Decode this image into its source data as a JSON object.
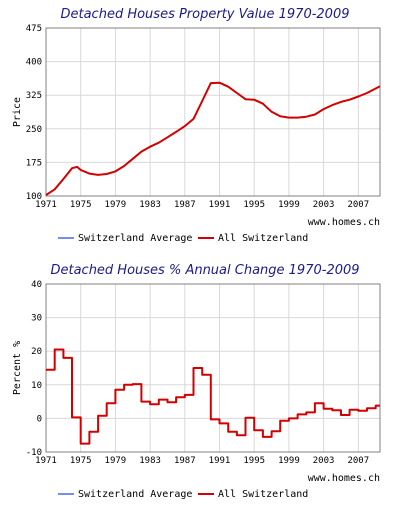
{
  "chart_data": [
    {
      "type": "line",
      "title": "Detached Houses Property Value 1970-2009",
      "ylabel": "Price",
      "xlabel": "",
      "xlim": [
        1971,
        2009.5
      ],
      "ylim": [
        100,
        475
      ],
      "yticks": [
        100,
        175,
        250,
        325,
        400,
        475
      ],
      "ytick_labels": [
        "100",
        "175",
        "250",
        "325",
        "400",
        "475"
      ],
      "xticks": [
        1971,
        1975,
        1979,
        1983,
        1987,
        1991,
        1995,
        1999,
        2003,
        2007
      ],
      "xtick_labels": [
        "1971",
        "1975",
        "1979",
        "1983",
        "1987",
        "1991",
        "1995",
        "1999",
        "2003",
        "2007"
      ],
      "grid": true,
      "source_text": "www.homes.ch",
      "legend": [
        "Switzerland Average",
        "All Switzerland"
      ],
      "series": [
        {
          "name": "Switzerland Average",
          "color": "#7b8cf0",
          "x": [],
          "y": []
        },
        {
          "name": "All Switzerland",
          "color": "#d40000",
          "x": [
            1971,
            1972,
            1973,
            1974,
            1974.6,
            1975,
            1976,
            1977,
            1978,
            1979,
            1980,
            1981,
            1982,
            1983,
            1984,
            1985,
            1986,
            1987,
            1988,
            1989,
            1990,
            1991,
            1992,
            1993,
            1994,
            1995,
            1996,
            1997,
            1998,
            1999,
            2000,
            2001,
            2002,
            2003,
            2004,
            2005,
            2006,
            2007,
            2008,
            2009.5
          ],
          "y": [
            102,
            115,
            138,
            162,
            165,
            158,
            150,
            147,
            149,
            155,
            167,
            183,
            199,
            210,
            219,
            231,
            243,
            256,
            272,
            312,
            352,
            353,
            344,
            330,
            316,
            315,
            306,
            288,
            278,
            275,
            275,
            277,
            282,
            294,
            303,
            310,
            315,
            322,
            330,
            345
          ]
        }
      ]
    },
    {
      "type": "line",
      "title": "Detached Houses % Annual Change 1970-2009",
      "ylabel": "Percent %",
      "xlabel": "",
      "xlim": [
        1971,
        2009.5
      ],
      "ylim": [
        -10,
        40
      ],
      "yticks": [
        -10,
        0,
        10,
        20,
        30,
        40
      ],
      "ytick_labels": [
        "-10",
        "0",
        "10",
        "20",
        "30",
        "40"
      ],
      "xticks": [
        1971,
        1975,
        1979,
        1983,
        1987,
        1991,
        1995,
        1999,
        2003,
        2007
      ],
      "xtick_labels": [
        "1971",
        "1975",
        "1979",
        "1983",
        "1987",
        "1991",
        "1995",
        "1999",
        "2003",
        "2007"
      ],
      "grid": true,
      "source_text": "www.homes.ch",
      "legend": [
        "Switzerland Average",
        "All Switzerland"
      ],
      "series": [
        {
          "name": "Switzerland Average",
          "color": "#7b8cf0",
          "x": [],
          "y": []
        },
        {
          "name": "All Switzerland",
          "color": "#d40000",
          "step": true,
          "x": [
            1971,
            1972,
            1973,
            1974,
            1975,
            1976,
            1977,
            1978,
            1979,
            1980,
            1981,
            1982,
            1983,
            1984,
            1985,
            1986,
            1987,
            1988,
            1989,
            1990,
            1991,
            1992,
            1993,
            1994,
            1995,
            1996,
            1997,
            1998,
            1999,
            2000,
            2001,
            2002,
            2003,
            2004,
            2005,
            2006,
            2007,
            2008,
            2009
          ],
          "y": [
            14.5,
            20.5,
            18,
            0.3,
            -7.5,
            -4,
            0.8,
            4.5,
            8.5,
            10,
            10.2,
            5,
            4.2,
            5.6,
            4.8,
            6.3,
            7,
            15,
            13,
            -0.3,
            -1.5,
            -4,
            -5,
            0.2,
            -3.5,
            -5.5,
            -3.8,
            -0.7,
            0,
            1.2,
            1.8,
            4.5,
            2.9,
            2.4,
            1,
            2.6,
            2.3,
            3,
            3.8
          ]
        }
      ]
    }
  ]
}
